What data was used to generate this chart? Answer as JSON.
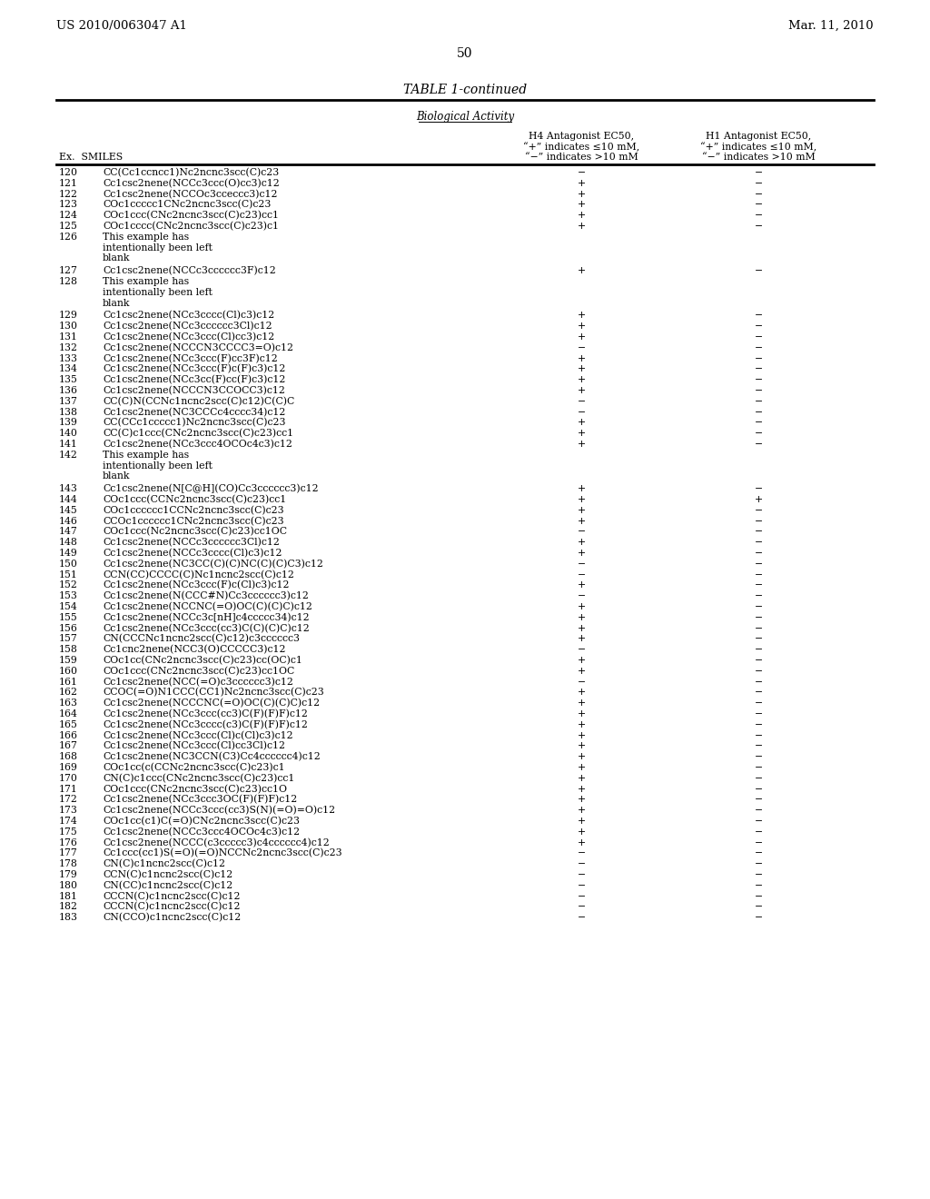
{
  "header_left": "US 2010/0063047 A1",
  "header_right": "Mar. 11, 2010",
  "page_number": "50",
  "table_title": "TABLE 1-continued",
  "section_label": "Biological Activity",
  "rows": [
    {
      "ex": "120",
      "smiles": "CC(Cc1ccncc1)Nc2ncnc3scc(C)c23",
      "h4": "−",
      "h1": "−",
      "blank": false
    },
    {
      "ex": "121",
      "smiles": "Cc1csc2nene(NCCc3ccc(O)cc3)c12",
      "h4": "+",
      "h1": "−",
      "blank": false
    },
    {
      "ex": "122",
      "smiles": "Cc1csc2nene(NCCOc3cceccc3)c12",
      "h4": "+",
      "h1": "−",
      "blank": false
    },
    {
      "ex": "123",
      "smiles": "COc1ccccc1CNc2ncnc3scc(C)c23",
      "h4": "+",
      "h1": "−",
      "blank": false
    },
    {
      "ex": "124",
      "smiles": "COc1ccc(CNc2ncnc3scc(C)c23)cc1",
      "h4": "+",
      "h1": "−",
      "blank": false
    },
    {
      "ex": "125",
      "smiles": "COc1cccc(CNc2ncnc3scc(C)c23)c1",
      "h4": "+",
      "h1": "−",
      "blank": false
    },
    {
      "ex": "126",
      "smiles": "This example has\nintentionally been left\nblank",
      "h4": "",
      "h1": "",
      "blank": true
    },
    {
      "ex": "127",
      "smiles": "Cc1csc2nene(NCCc3cccccc3F)c12",
      "h4": "+",
      "h1": "−",
      "blank": false
    },
    {
      "ex": "128",
      "smiles": "This example has\nintentionally been left\nblank",
      "h4": "",
      "h1": "",
      "blank": true
    },
    {
      "ex": "129",
      "smiles": "Cc1csc2nene(NCc3cccc(Cl)c3)c12",
      "h4": "+",
      "h1": "−",
      "blank": false
    },
    {
      "ex": "130",
      "smiles": "Cc1csc2nene(NCc3cccccc3Cl)c12",
      "h4": "+",
      "h1": "−",
      "blank": false
    },
    {
      "ex": "131",
      "smiles": "Cc1csc2nene(NCc3ccc(Cl)cc3)c12",
      "h4": "+",
      "h1": "−",
      "blank": false
    },
    {
      "ex": "132",
      "smiles": "Cc1csc2nene(NCCCN3CCCC3=O)c12",
      "h4": "−",
      "h1": "−",
      "blank": false
    },
    {
      "ex": "133",
      "smiles": "Cc1csc2nene(NCc3ccc(F)cc3F)c12",
      "h4": "+",
      "h1": "−",
      "blank": false
    },
    {
      "ex": "134",
      "smiles": "Cc1csc2nene(NCc3ccc(F)c(F)c3)c12",
      "h4": "+",
      "h1": "−",
      "blank": false
    },
    {
      "ex": "135",
      "smiles": "Cc1csc2nene(NCc3cc(F)cc(F)c3)c12",
      "h4": "+",
      "h1": "−",
      "blank": false
    },
    {
      "ex": "136",
      "smiles": "Cc1csc2nene(NCCCN3CCOCC3)c12",
      "h4": "+",
      "h1": "−",
      "blank": false
    },
    {
      "ex": "137",
      "smiles": "CC(C)N(CCNc1ncnc2scc(C)c12)C(C)C",
      "h4": "−",
      "h1": "−",
      "blank": false
    },
    {
      "ex": "138",
      "smiles": "Cc1csc2nene(NC3CCCc4cccc34)c12",
      "h4": "−",
      "h1": "−",
      "blank": false
    },
    {
      "ex": "139",
      "smiles": "CC(CCc1ccccc1)Nc2ncnc3scc(C)c23",
      "h4": "+",
      "h1": "−",
      "blank": false
    },
    {
      "ex": "140",
      "smiles": "CC(C)c1ccc(CNc2ncnc3scc(C)c23)cc1",
      "h4": "+",
      "h1": "−",
      "blank": false
    },
    {
      "ex": "141",
      "smiles": "Cc1csc2nene(NCc3ccc4OCOc4c3)c12",
      "h4": "+",
      "h1": "−",
      "blank": false
    },
    {
      "ex": "142",
      "smiles": "This example has\nintentionally been left\nblank",
      "h4": "",
      "h1": "",
      "blank": true
    },
    {
      "ex": "143",
      "smiles": "Cc1csc2nene(N[C@H](CO)Cc3cccccc3)c12",
      "h4": "+",
      "h1": "−",
      "blank": false
    },
    {
      "ex": "144",
      "smiles": "COc1ccc(CCNc2ncnc3scc(C)c23)cc1",
      "h4": "+",
      "h1": "+",
      "blank": false
    },
    {
      "ex": "145",
      "smiles": "COc1cccccc1CCNc2ncnc3scc(C)c23",
      "h4": "+",
      "h1": "−",
      "blank": false
    },
    {
      "ex": "146",
      "smiles": "CCOc1cccccc1CNc2ncnc3scc(C)c23",
      "h4": "+",
      "h1": "−",
      "blank": false
    },
    {
      "ex": "147",
      "smiles": "COc1ccc(Nc2ncnc3scc(C)c23)cc1OC",
      "h4": "−",
      "h1": "−",
      "blank": false
    },
    {
      "ex": "148",
      "smiles": "Cc1csc2nene(NCCc3cccccc3Cl)c12",
      "h4": "+",
      "h1": "−",
      "blank": false
    },
    {
      "ex": "149",
      "smiles": "Cc1csc2nene(NCCc3cccc(Cl)c3)c12",
      "h4": "+",
      "h1": "−",
      "blank": false
    },
    {
      "ex": "150",
      "smiles": "Cc1csc2nene(NC3CC(C)(C)NC(C)(C)C3)c12",
      "h4": "−",
      "h1": "−",
      "blank": false
    },
    {
      "ex": "151",
      "smiles": "CCN(CC)CCCC(C)Nc1ncnc2scc(C)c12",
      "h4": "−",
      "h1": "−",
      "blank": false
    },
    {
      "ex": "152",
      "smiles": "Cc1csc2nene(NCc3ccc(F)c(Cl)c3)c12",
      "h4": "+",
      "h1": "−",
      "blank": false
    },
    {
      "ex": "153",
      "smiles": "Cc1csc2nene(N(CCC#N)Cc3cccccc3)c12",
      "h4": "−",
      "h1": "−",
      "blank": false
    },
    {
      "ex": "154",
      "smiles": "Cc1csc2nene(NCCNC(=O)OC(C)(C)C)c12",
      "h4": "+",
      "h1": "−",
      "blank": false
    },
    {
      "ex": "155",
      "smiles": "Cc1csc2nene(NCCc3c[nH]c4ccccc34)c12",
      "h4": "+",
      "h1": "−",
      "blank": false
    },
    {
      "ex": "156",
      "smiles": "Cc1csc2nene(NCc3ccc(cc3)C(C)(C)C)c12",
      "h4": "+",
      "h1": "−",
      "blank": false
    },
    {
      "ex": "157",
      "smiles": "CN(CCCNc1ncnc2scc(C)c12)c3cccccc3",
      "h4": "+",
      "h1": "−",
      "blank": false
    },
    {
      "ex": "158",
      "smiles": "Cc1cnc2nene(NCC3(O)CCCCC3)c12",
      "h4": "−",
      "h1": "−",
      "blank": false
    },
    {
      "ex": "159",
      "smiles": "COc1cc(CNc2ncnc3scc(C)c23)cc(OC)c1",
      "h4": "+",
      "h1": "−",
      "blank": false
    },
    {
      "ex": "160",
      "smiles": "COc1ccc(CNc2ncnc3scc(C)c23)cc1OC",
      "h4": "+",
      "h1": "−",
      "blank": false
    },
    {
      "ex": "161",
      "smiles": "Cc1csc2nene(NCC(=O)c3cccccc3)c12",
      "h4": "−",
      "h1": "−",
      "blank": false
    },
    {
      "ex": "162",
      "smiles": "CCOC(=O)N1CCC(CC1)Nc2ncnc3scc(C)c23",
      "h4": "+",
      "h1": "−",
      "blank": false
    },
    {
      "ex": "163",
      "smiles": "Cc1csc2nene(NCCCNC(=O)OC(C)(C)C)c12",
      "h4": "+",
      "h1": "−",
      "blank": false
    },
    {
      "ex": "164",
      "smiles": "Cc1csc2nene(NCc3ccc(cc3)C(F)(F)F)c12",
      "h4": "+",
      "h1": "−",
      "blank": false
    },
    {
      "ex": "165",
      "smiles": "Cc1csc2nene(NCc3cccc(c3)C(F)(F)F)c12",
      "h4": "+",
      "h1": "−",
      "blank": false
    },
    {
      "ex": "166",
      "smiles": "Cc1csc2nene(NCc3ccc(Cl)c(Cl)c3)c12",
      "h4": "+",
      "h1": "−",
      "blank": false
    },
    {
      "ex": "167",
      "smiles": "Cc1csc2nene(NCc3ccc(Cl)cc3Cl)c12",
      "h4": "+",
      "h1": "−",
      "blank": false
    },
    {
      "ex": "168",
      "smiles": "Cc1csc2nene(NC3CCN(C3)Cc4cccccc4)c12",
      "h4": "+",
      "h1": "−",
      "blank": false
    },
    {
      "ex": "169",
      "smiles": "COc1cc(c(CCNc2ncnc3scc(C)c23)c1",
      "h4": "+",
      "h1": "−",
      "blank": false
    },
    {
      "ex": "170",
      "smiles": "CN(C)c1ccc(CNc2ncnc3scc(C)c23)cc1",
      "h4": "+",
      "h1": "−",
      "blank": false
    },
    {
      "ex": "171",
      "smiles": "COc1ccc(CNc2ncnc3scc(C)c23)cc1O",
      "h4": "+",
      "h1": "−",
      "blank": false
    },
    {
      "ex": "172",
      "smiles": "Cc1csc2nene(NCc3ccc3OC(F)(F)F)c12",
      "h4": "+",
      "h1": "−",
      "blank": false
    },
    {
      "ex": "173",
      "smiles": "Cc1csc2nene(NCCc3ccc(cc3)S(N)(=O)=O)c12",
      "h4": "+",
      "h1": "−",
      "blank": false
    },
    {
      "ex": "174",
      "smiles": "COc1cc(c1)C(=O)CNc2ncnc3scc(C)c23",
      "h4": "+",
      "h1": "−",
      "blank": false
    },
    {
      "ex": "175",
      "smiles": "Cc1csc2nene(NCCc3ccc4OCOc4c3)c12",
      "h4": "+",
      "h1": "−",
      "blank": false
    },
    {
      "ex": "176",
      "smiles": "Cc1csc2nene(NCCC(c3ccccc3)c4cccccc4)c12",
      "h4": "+",
      "h1": "−",
      "blank": false
    },
    {
      "ex": "177",
      "smiles": "Cc1ccc(cc1)S(=O)(=O)NCCNc2ncnc3scc(C)c23",
      "h4": "−",
      "h1": "−",
      "blank": false
    },
    {
      "ex": "178",
      "smiles": "CN(C)c1ncnc2scc(C)c12",
      "h4": "−",
      "h1": "−",
      "blank": false
    },
    {
      "ex": "179",
      "smiles": "CCN(C)c1ncnc2scc(C)c12",
      "h4": "−",
      "h1": "−",
      "blank": false
    },
    {
      "ex": "180",
      "smiles": "CN(CC)c1ncnc2scc(C)c12",
      "h4": "−",
      "h1": "−",
      "blank": false
    },
    {
      "ex": "181",
      "smiles": "CCCN(C)c1ncnc2scc(C)c12",
      "h4": "−",
      "h1": "−",
      "blank": false
    },
    {
      "ex": "182",
      "smiles": "CCCN(C)c1ncnc2scc(C)c12",
      "h4": "−",
      "h1": "−",
      "blank": false
    },
    {
      "ex": "183",
      "smiles": "CN(CCO)c1ncnc2scc(C)c12",
      "h4": "−",
      "h1": "−",
      "blank": false
    }
  ]
}
